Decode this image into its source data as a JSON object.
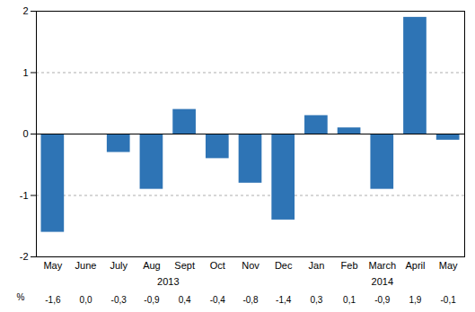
{
  "chart_data": {
    "type": "bar",
    "categories": [
      "May",
      "June",
      "July",
      "Aug",
      "Sept",
      "Oct",
      "Nov",
      "Dec",
      "Jan",
      "Feb",
      "March",
      "April",
      "May"
    ],
    "values": [
      -1.6,
      0.0,
      -0.3,
      -0.9,
      0.4,
      -0.4,
      -0.8,
      -1.4,
      0.3,
      0.1,
      -0.9,
      1.9,
      -0.1
    ],
    "value_labels": [
      "-1,6",
      "0,0",
      "-0,3",
      "-0,9",
      "0,4",
      "-0,4",
      "-0,8",
      "-1,4",
      "0,3",
      "0,1",
      "-0,9",
      "1,9",
      "-0,1"
    ],
    "value_labels_title": "%",
    "data_labels": true,
    "annotations": [
      {
        "text": "2013",
        "span": [
          0,
          7
        ]
      },
      {
        "text": "2014",
        "span": [
          8,
          12
        ]
      }
    ],
    "color": "#2E74B5",
    "ylim": [
      -2.0,
      2.0
    ],
    "yticks": [
      -2,
      -1,
      0,
      1,
      2
    ],
    "grid": true
  }
}
